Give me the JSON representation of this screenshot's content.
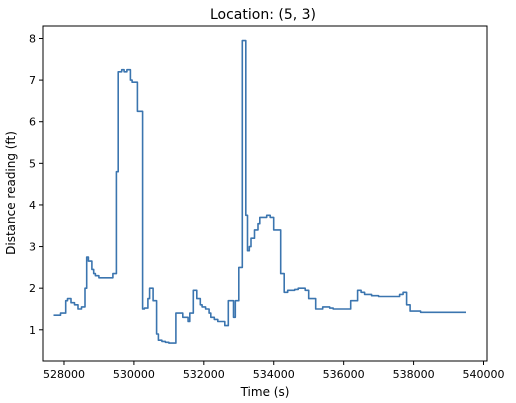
{
  "chart_data": {
    "type": "line",
    "title": "Location: (5, 3)",
    "xlabel": "Time (s)",
    "ylabel": "Distance reading (ft)",
    "xlim": [
      527400,
      540100
    ],
    "ylim": [
      0.25,
      8.3
    ],
    "xticks": [
      528000,
      530000,
      532000,
      534000,
      536000,
      538000,
      540000
    ],
    "xtick_labels": [
      "528000",
      "530000",
      "532000",
      "534000",
      "536000",
      "538000",
      "540000"
    ],
    "yticks": [
      1,
      2,
      3,
      4,
      5,
      6,
      7,
      8
    ],
    "ytick_labels": [
      "1",
      "2",
      "3",
      "4",
      "5",
      "6",
      "7",
      "8"
    ],
    "grid": false,
    "line_color": "#3b75af",
    "series": [
      {
        "step": true,
        "x": [
          527700,
          527900,
          528050,
          528100,
          528200,
          528300,
          528400,
          528500,
          528600,
          528650,
          528700,
          528800,
          528850,
          528900,
          529000,
          529100,
          529200,
          529300,
          529400,
          529500,
          529550,
          529650,
          529720,
          529800,
          529900,
          529950,
          530000,
          530100,
          530250,
          530300,
          530400,
          530450,
          530550,
          530650,
          530700,
          530800,
          530900,
          531000,
          531200,
          531400,
          531550,
          531600,
          531700,
          531800,
          531900,
          531950,
          532050,
          532150,
          532200,
          532300,
          532400,
          532500,
          532600,
          532700,
          532850,
          532900,
          533000,
          533100,
          533200,
          533250,
          533300,
          533350,
          533450,
          533550,
          533600,
          533700,
          533800,
          533900,
          534000,
          534200,
          534300,
          534400,
          534600,
          534700,
          534900,
          535000,
          535200,
          535400,
          535600,
          535700,
          535900,
          536200,
          536400,
          536500,
          536600,
          536800,
          537000,
          537200,
          537400,
          537600,
          537700,
          537800,
          537900,
          538000,
          538200,
          538600,
          539000,
          539300,
          539500
        ],
        "y": [
          1.35,
          1.4,
          1.7,
          1.75,
          1.65,
          1.6,
          1.5,
          1.55,
          2.0,
          2.75,
          2.65,
          2.45,
          2.35,
          2.3,
          2.25,
          2.25,
          2.25,
          2.25,
          2.35,
          4.8,
          7.2,
          7.25,
          7.2,
          7.25,
          7.0,
          6.95,
          6.95,
          6.25,
          1.5,
          1.52,
          1.75,
          2.0,
          1.7,
          0.9,
          0.75,
          0.72,
          0.7,
          0.68,
          1.4,
          1.3,
          1.2,
          1.4,
          1.95,
          1.75,
          1.6,
          1.55,
          1.5,
          1.4,
          1.3,
          1.25,
          1.2,
          1.2,
          1.1,
          1.7,
          1.3,
          1.7,
          2.5,
          7.95,
          3.75,
          2.9,
          3.0,
          3.2,
          3.4,
          3.55,
          3.7,
          3.7,
          3.75,
          3.7,
          3.4,
          2.35,
          1.9,
          1.95,
          1.97,
          2.0,
          1.95,
          1.75,
          1.5,
          1.55,
          1.52,
          1.5,
          1.5,
          1.7,
          1.95,
          1.9,
          1.85,
          1.82,
          1.8,
          1.8,
          1.8,
          1.85,
          1.9,
          1.6,
          1.45,
          1.45,
          1.42,
          1.42,
          1.42,
          1.42,
          1.42
        ]
      }
    ]
  }
}
